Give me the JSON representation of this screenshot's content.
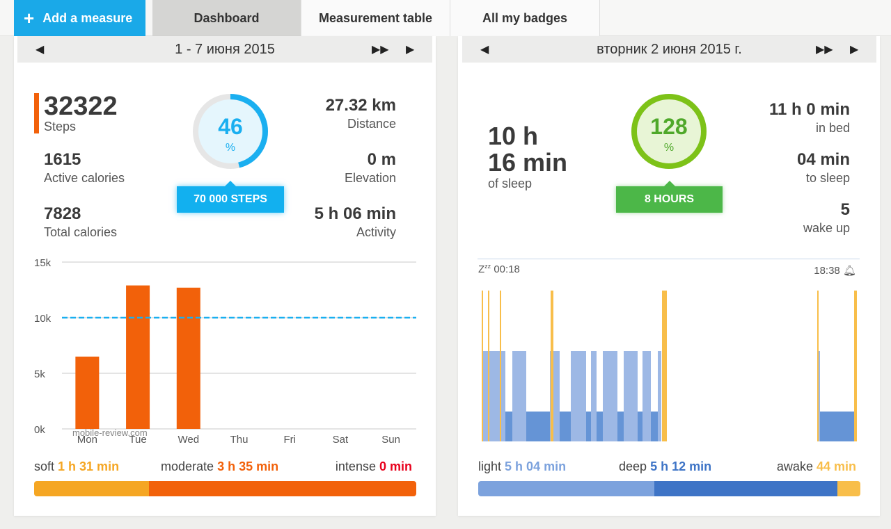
{
  "toolbar": {
    "add_label": "Add a measure",
    "tabs": [
      "Dashboard",
      "Measurement table",
      "All my badges"
    ]
  },
  "activity": {
    "date_range": "1 - 7 июня 2015",
    "steps_value": "32322",
    "steps_label": "Steps",
    "active_cal_value": "1615",
    "active_cal_label": "Active calories",
    "total_cal_value": "7828",
    "total_cal_label": "Total calories",
    "distance_value": "27.32 km",
    "distance_label": "Distance",
    "elevation_value": "0 m",
    "elevation_label": "Elevation",
    "activity_value": "5 h 06 min",
    "activity_label": "Activity",
    "ring_value": "46",
    "ring_pct": "%",
    "ring_fraction": 0.46,
    "goal": "70 000 STEPS",
    "summary": {
      "soft_label": "soft",
      "soft_value": "1 h 31 min",
      "moderate_label": "moderate",
      "moderate_value": "3 h 35 min",
      "intense_label": "intense",
      "intense_value": "0 min"
    },
    "intensity_fractions": [
      0.3,
      0.7,
      0.0
    ],
    "colors": {
      "accent": "#f2610a",
      "soft": "#f5a623",
      "moderate": "#f2610a",
      "intense": "#e8001c",
      "ring": "#1aaff0"
    },
    "watermark": "mobile-review.com"
  },
  "sleep": {
    "date": "вторник 2 июня 2015 г.",
    "total_line1": "10 h",
    "total_line2": "16 min",
    "total_label": "of sleep",
    "in_bed_value": "11 h 0 min",
    "in_bed_label": "in bed",
    "to_sleep_value": "04 min",
    "to_sleep_label": "to sleep",
    "wake_value": "5",
    "wake_label": "wake up",
    "ring_value": "128",
    "ring_pct": "%",
    "ring_fraction": 1.0,
    "goal": "8 HOURS",
    "start_time": "00:18",
    "end_time": "18:38",
    "zzz": "Z",
    "summary": {
      "light_label": "light",
      "light_value": "5 h 04 min",
      "deep_label": "deep",
      "deep_value": "5 h 12 min",
      "awake_label": "awake",
      "awake_value": "44 min"
    },
    "phase_fractions": [
      0.46,
      0.48,
      0.06
    ],
    "colors": {
      "light": "#7ca2dd",
      "deep": "#3e74c6",
      "awake": "#f8be4a",
      "ring": "#7dc218"
    }
  },
  "chart_data": {
    "type": "bar",
    "categories": [
      "Mon",
      "Tue",
      "Wed",
      "Thu",
      "Fri",
      "Sat",
      "Sun"
    ],
    "values": [
      6500,
      12900,
      12700,
      0,
      0,
      0,
      0
    ],
    "ylim": [
      0,
      15000
    ],
    "yticks": [
      "0k",
      "5k",
      "10k",
      "15k"
    ],
    "ytick_values": [
      0,
      5000,
      10000,
      15000
    ],
    "goal_line": 10000,
    "xlabel": "",
    "ylabel": "",
    "title": ""
  }
}
